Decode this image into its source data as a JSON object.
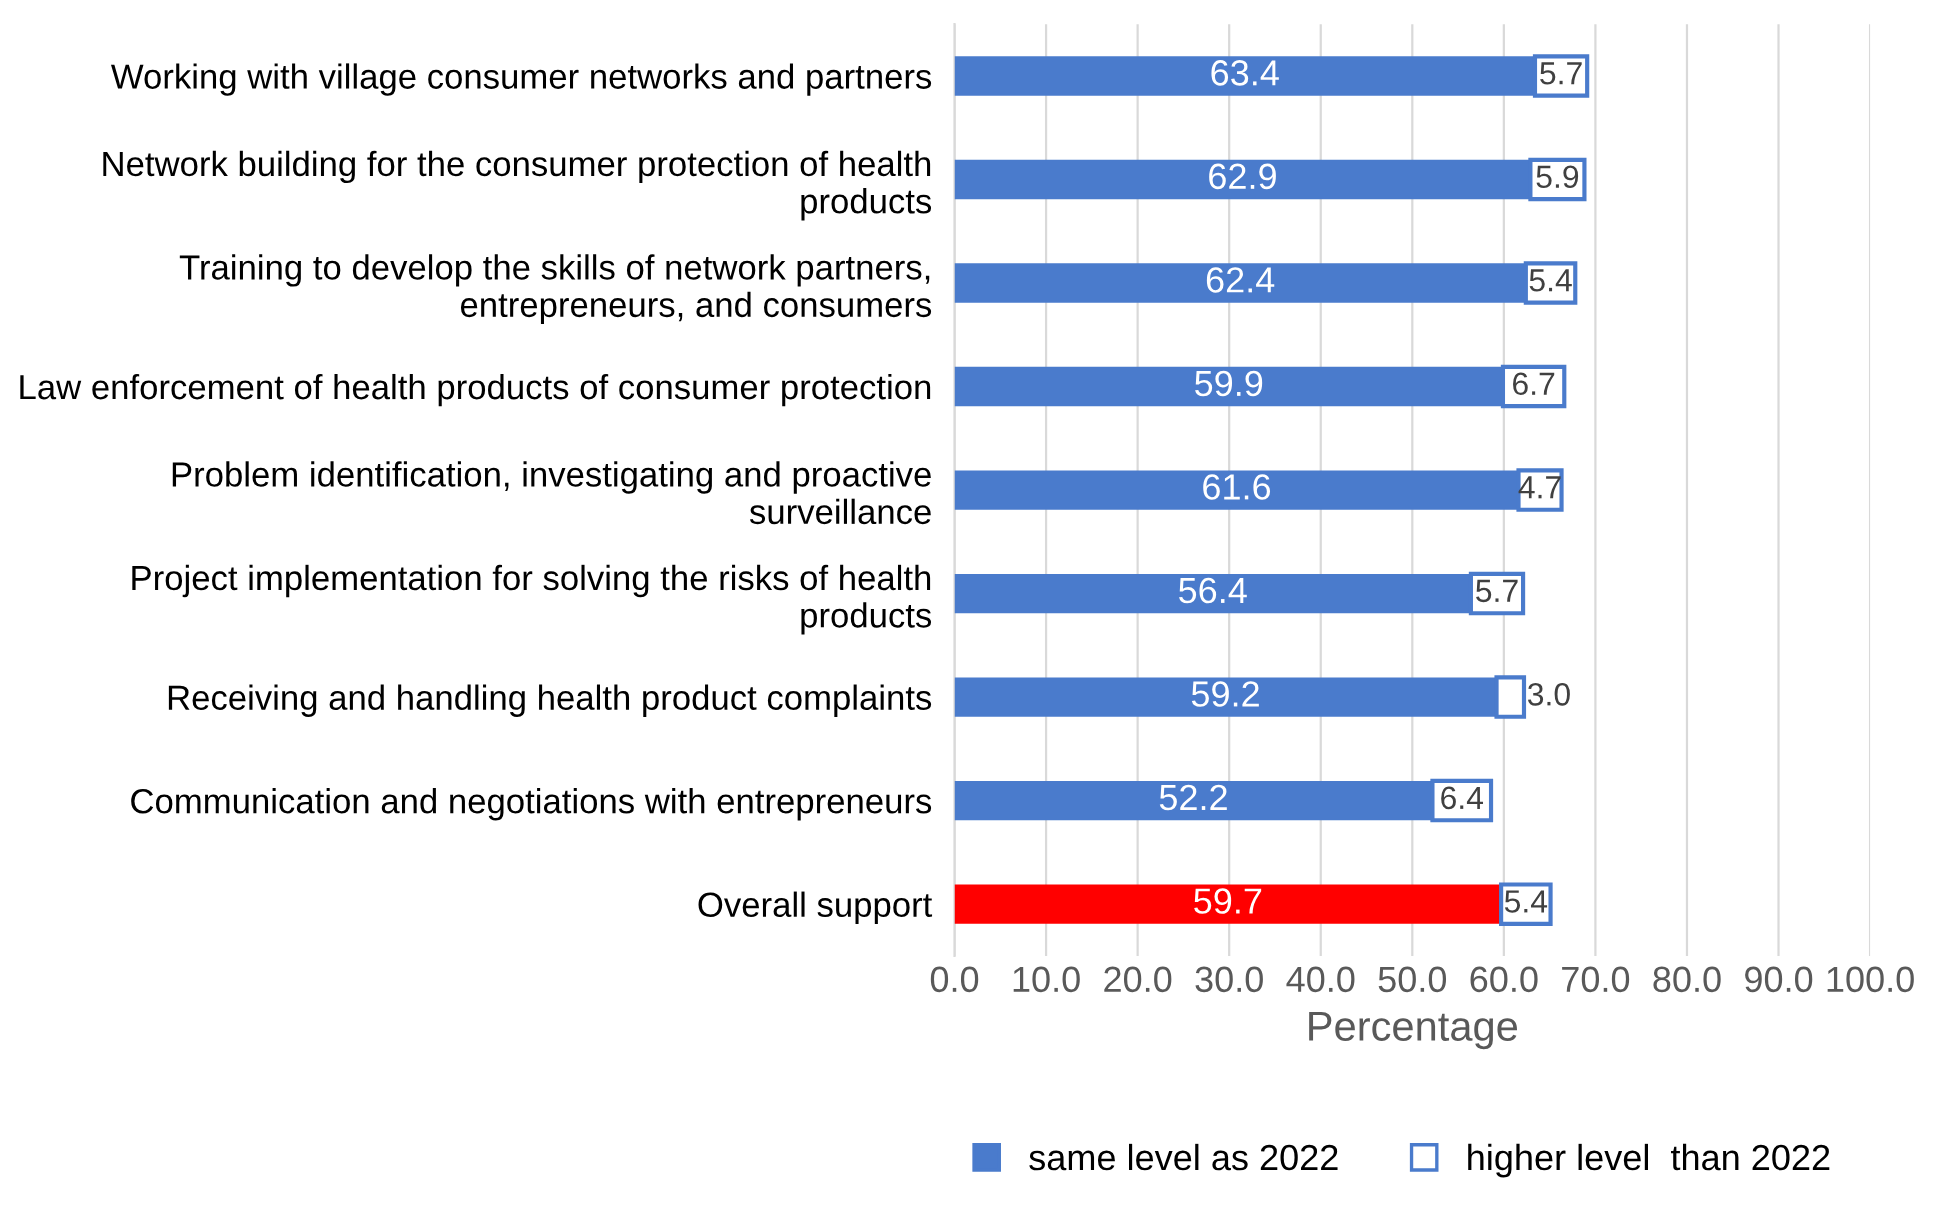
{
  "chart_data": {
    "type": "bar",
    "orientation": "horizontal",
    "stacked": true,
    "xlabel": "Percentage",
    "categories": [
      "Working with village consumer networks and partners",
      "Network building for the consumer protection of health products",
      "Training to develop the skills of network partners, entrepreneurs, and consumers",
      "Law enforcement of health products of consumer protection",
      "Problem identification, investigating and proactive surveillance",
      "Project implementation for solving the risks of health products",
      "Receiving and handling health product complaints",
      "Communication and negotiations with entrepreneurs",
      "Overall support"
    ],
    "series": [
      {
        "name": "same level as 2022",
        "color": "#4a7bcc",
        "colors": [
          "#4a7bcc",
          "#4a7bcc",
          "#4a7bcc",
          "#4a7bcc",
          "#4a7bcc",
          "#4a7bcc",
          "#4a7bcc",
          "#4a7bcc",
          "#ff0000"
        ],
        "values": [
          63.4,
          62.9,
          62.4,
          59.9,
          61.6,
          56.4,
          59.2,
          52.2,
          59.7
        ]
      },
      {
        "name": "higher level  than 2022",
        "color": "#ffffff",
        "values": [
          5.7,
          5.9,
          5.4,
          6.7,
          4.7,
          5.7,
          3.0,
          6.4,
          5.4
        ],
        "value_labels": [
          "5.7",
          "5.9",
          "5.4",
          "6.7",
          "4.7",
          "5.7",
          "3.0",
          "6.4",
          "5.4"
        ]
      }
    ],
    "xlim": [
      0,
      100
    ],
    "xticks": [
      {
        "value": 0,
        "label": "0.0"
      },
      {
        "value": 10,
        "label": "10.0"
      },
      {
        "value": 20,
        "label": "20.0"
      },
      {
        "value": 30,
        "label": "30.0"
      },
      {
        "value": 40,
        "label": "40.0"
      },
      {
        "value": 50,
        "label": "50.0"
      },
      {
        "value": 60,
        "label": "60.0"
      },
      {
        "value": 70,
        "label": "70.0"
      },
      {
        "value": 80,
        "label": "80.0"
      },
      {
        "value": 90,
        "label": "90.0"
      },
      {
        "value": 100,
        "label": "100.0"
      }
    ],
    "grid": "x",
    "legend": "bottom",
    "data_labels": true
  }
}
